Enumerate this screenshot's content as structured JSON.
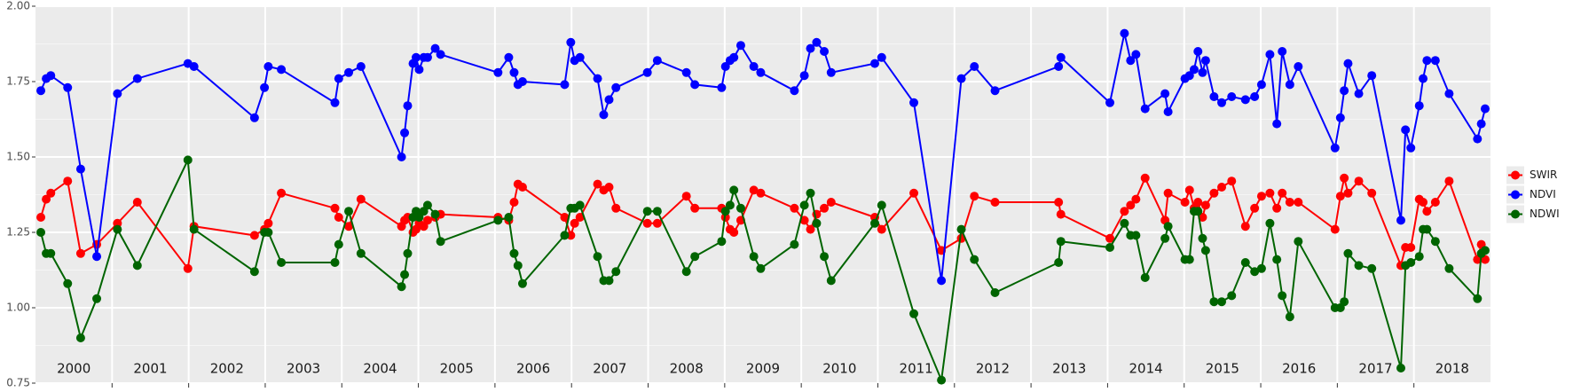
{
  "chart_data": {
    "type": "line",
    "x": [
      2000.07,
      2000.14,
      2000.2,
      2000.42,
      2000.59,
      2000.8,
      2001.07,
      2001.33,
      2001.99,
      2002.07,
      2002.86,
      2002.99,
      2003.04,
      2003.21,
      2003.91,
      2003.96,
      2004.09,
      2004.25,
      2004.78,
      2004.82,
      2004.86,
      2004.93,
      2004.97,
      2005.01,
      2005.07,
      2005.12,
      2005.22,
      2005.29,
      2006.04,
      2006.18,
      2006.25,
      2006.3,
      2006.36,
      2006.91,
      2006.99,
      2007.04,
      2007.11,
      2007.34,
      2007.42,
      2007.49,
      2007.58,
      2007.99,
      2008.12,
      2008.5,
      2008.61,
      2008.96,
      2009.01,
      2009.07,
      2009.12,
      2009.21,
      2009.38,
      2009.47,
      2009.91,
      2010.04,
      2010.12,
      2010.2,
      2010.3,
      2010.39,
      2010.96,
      2011.05,
      2011.47,
      2011.83,
      2012.09,
      2012.26,
      2012.53,
      2013.36,
      2013.39,
      2014.03,
      2014.22,
      2014.3,
      2014.37,
      2014.49,
      2014.75,
      2014.79,
      2015.01,
      2015.07,
      2015.13,
      2015.18,
      2015.24,
      2015.28,
      2015.39,
      2015.49,
      2015.62,
      2015.8,
      2015.92,
      2016.01,
      2016.12,
      2016.21,
      2016.28,
      2016.38,
      2016.49,
      2016.97,
      2017.04,
      2017.09,
      2017.14,
      2017.28,
      2017.45,
      2017.83,
      2017.89,
      2017.96,
      2018.07,
      2018.12,
      2018.17,
      2018.28,
      2018.46,
      2018.83,
      2018.88,
      2018.93
    ],
    "series": [
      {
        "name": "SWIR",
        "color": "#ff0000",
        "values": [
          1.3,
          1.36,
          1.38,
          1.42,
          1.18,
          1.21,
          1.28,
          1.35,
          1.13,
          1.27,
          1.24,
          1.26,
          1.28,
          1.38,
          1.33,
          1.3,
          1.27,
          1.36,
          1.27,
          1.29,
          1.3,
          1.25,
          1.26,
          1.28,
          1.27,
          1.29,
          1.3,
          1.31,
          1.3,
          1.29,
          1.35,
          1.41,
          1.4,
          1.3,
          1.24,
          1.28,
          1.3,
          1.41,
          1.39,
          1.4,
          1.33,
          1.28,
          1.28,
          1.37,
          1.33,
          1.33,
          1.3,
          1.26,
          1.25,
          1.29,
          1.39,
          1.38,
          1.33,
          1.29,
          1.26,
          1.31,
          1.33,
          1.35,
          1.3,
          1.26,
          1.38,
          1.19,
          1.23,
          1.37,
          1.35,
          1.35,
          1.31,
          1.23,
          1.32,
          1.34,
          1.36,
          1.43,
          1.29,
          1.38,
          1.35,
          1.39,
          1.33,
          1.35,
          1.3,
          1.34,
          1.38,
          1.4,
          1.42,
          1.27,
          1.33,
          1.37,
          1.38,
          1.33,
          1.38,
          1.35,
          1.35,
          1.26,
          1.37,
          1.43,
          1.38,
          1.42,
          1.38,
          1.14,
          1.2,
          1.2,
          1.36,
          1.35,
          1.32,
          1.35,
          1.42,
          1.16,
          1.21,
          1.16
        ]
      },
      {
        "name": "NDVI",
        "color": "#0000ff",
        "values": [
          1.72,
          1.76,
          1.77,
          1.73,
          1.46,
          1.17,
          1.71,
          1.76,
          1.81,
          1.8,
          1.63,
          1.73,
          1.8,
          1.79,
          1.68,
          1.76,
          1.78,
          1.8,
          1.5,
          1.58,
          1.67,
          1.81,
          1.83,
          1.79,
          1.83,
          1.83,
          1.86,
          1.84,
          1.78,
          1.83,
          1.78,
          1.74,
          1.75,
          1.74,
          1.88,
          1.82,
          1.83,
          1.76,
          1.64,
          1.69,
          1.73,
          1.78,
          1.82,
          1.78,
          1.74,
          1.73,
          1.8,
          1.82,
          1.83,
          1.87,
          1.8,
          1.78,
          1.72,
          1.77,
          1.86,
          1.88,
          1.85,
          1.78,
          1.81,
          1.83,
          1.68,
          1.09,
          1.76,
          1.8,
          1.72,
          1.8,
          1.83,
          1.68,
          1.91,
          1.82,
          1.84,
          1.66,
          1.71,
          1.65,
          1.76,
          1.77,
          1.79,
          1.85,
          1.78,
          1.82,
          1.7,
          1.68,
          1.7,
          1.69,
          1.7,
          1.74,
          1.84,
          1.61,
          1.85,
          1.74,
          1.8,
          1.53,
          1.63,
          1.72,
          1.81,
          1.71,
          1.77,
          1.29,
          1.59,
          1.53,
          1.67,
          1.76,
          1.82,
          1.82,
          1.71,
          1.56,
          1.61,
          1.66
        ]
      },
      {
        "name": "NDWI",
        "color": "#006400",
        "values": [
          1.25,
          1.18,
          1.18,
          1.08,
          0.9,
          1.03,
          1.26,
          1.14,
          1.49,
          1.26,
          1.12,
          1.25,
          1.25,
          1.15,
          1.15,
          1.21,
          1.32,
          1.18,
          1.07,
          1.11,
          1.18,
          1.3,
          1.32,
          1.3,
          1.32,
          1.34,
          1.31,
          1.22,
          1.29,
          1.3,
          1.18,
          1.14,
          1.08,
          1.24,
          1.33,
          1.33,
          1.34,
          1.17,
          1.09,
          1.09,
          1.12,
          1.32,
          1.32,
          1.12,
          1.17,
          1.22,
          1.32,
          1.34,
          1.39,
          1.33,
          1.17,
          1.13,
          1.21,
          1.34,
          1.38,
          1.28,
          1.17,
          1.09,
          1.28,
          1.34,
          0.98,
          0.76,
          1.26,
          1.16,
          1.05,
          1.15,
          1.22,
          1.2,
          1.28,
          1.24,
          1.24,
          1.1,
          1.23,
          1.27,
          1.16,
          1.16,
          1.32,
          1.32,
          1.23,
          1.19,
          1.02,
          1.02,
          1.04,
          1.15,
          1.12,
          1.13,
          1.28,
          1.16,
          1.04,
          0.97,
          1.22,
          1.0,
          1.0,
          1.02,
          1.18,
          1.14,
          1.13,
          0.8,
          1.14,
          1.15,
          1.17,
          1.26,
          1.26,
          1.22,
          1.13,
          1.03,
          1.18,
          1.19
        ]
      }
    ],
    "xlim": [
      2000,
      2019
    ],
    "xticks": [
      2001,
      2002,
      2003,
      2004,
      2005,
      2006,
      2007,
      2008,
      2009,
      2010,
      2011,
      2012,
      2013,
      2014,
      2015,
      2016,
      2017,
      2018
    ],
    "year_labels": [
      {
        "value": 2000.5,
        "label": "2000"
      },
      {
        "value": 2001.5,
        "label": "2001"
      },
      {
        "value": 2002.5,
        "label": "2002"
      },
      {
        "value": 2003.5,
        "label": "2003"
      },
      {
        "value": 2004.5,
        "label": "2004"
      },
      {
        "value": 2005.5,
        "label": "2005"
      },
      {
        "value": 2006.5,
        "label": "2006"
      },
      {
        "value": 2007.5,
        "label": "2007"
      },
      {
        "value": 2008.5,
        "label": "2008"
      },
      {
        "value": 2009.5,
        "label": "2009"
      },
      {
        "value": 2010.5,
        "label": "2010"
      },
      {
        "value": 2011.5,
        "label": "2011"
      },
      {
        "value": 2012.5,
        "label": "2012"
      },
      {
        "value": 2013.5,
        "label": "2013"
      },
      {
        "value": 2014.5,
        "label": "2014"
      },
      {
        "value": 2015.5,
        "label": "2015"
      },
      {
        "value": 2016.5,
        "label": "2016"
      },
      {
        "value": 2017.5,
        "label": "2017"
      },
      {
        "value": 2018.5,
        "label": "2018"
      }
    ],
    "ylim": [
      0.75,
      2
    ],
    "yticks": [
      {
        "value": 0.75,
        "label": "0.75"
      },
      {
        "value": 1,
        "label": "1.00"
      },
      {
        "value": 1.25,
        "label": "1.25"
      },
      {
        "value": 1.5,
        "label": "1.50"
      },
      {
        "value": 1.75,
        "label": "1.75"
      },
      {
        "value": 2,
        "label": "2.00"
      }
    ],
    "yminor": [
      0.875,
      1.125,
      1.375,
      1.625,
      1.875
    ],
    "grid": true,
    "legend": "right"
  }
}
